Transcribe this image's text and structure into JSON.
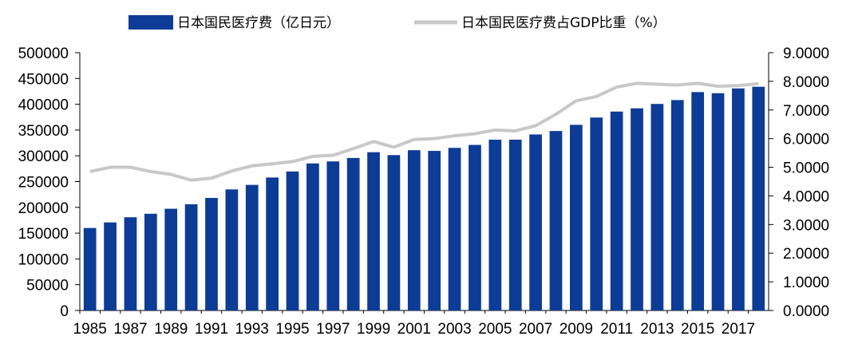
{
  "chart_data": {
    "type": "bar",
    "title": "",
    "xlabel": "",
    "ylabel": "",
    "ylabel_right": "",
    "grid": false,
    "legend_position": "top",
    "ylim": [
      0,
      500000
    ],
    "y2lim": [
      0,
      9
    ],
    "y_ticks": [
      "0",
      "50000",
      "100000",
      "150000",
      "200000",
      "250000",
      "300000",
      "350000",
      "400000",
      "450000",
      "500000"
    ],
    "y2_ticks": [
      "0.0000",
      "1.0000",
      "2.0000",
      "3.0000",
      "4.0000",
      "5.0000",
      "6.0000",
      "7.0000",
      "8.0000",
      "9.0000"
    ],
    "x_tick_labels": [
      "1985",
      "1987",
      "1989",
      "1991",
      "1993",
      "1995",
      "1997",
      "1999",
      "2001",
      "2003",
      "2005",
      "2007",
      "2009",
      "2011",
      "2013",
      "2015",
      "2017"
    ],
    "categories": [
      "1985",
      "1986",
      "1987",
      "1988",
      "1989",
      "1990",
      "1991",
      "1992",
      "1993",
      "1994",
      "1995",
      "1996",
      "1997",
      "1998",
      "1999",
      "2000",
      "2001",
      "2002",
      "2003",
      "2004",
      "2005",
      "2006",
      "2007",
      "2008",
      "2009",
      "2010",
      "2011",
      "2012",
      "2013",
      "2014",
      "2015",
      "2016",
      "2017",
      "2018"
    ],
    "series": [
      {
        "name": "日本国民医疗费（亿日元）",
        "type": "bar",
        "axis": "left",
        "color": "#0d3c96",
        "values": [
          160000,
          170800,
          180800,
          187600,
          197300,
          206100,
          218300,
          234800,
          243600,
          257900,
          269600,
          285200,
          289100,
          295800,
          307000,
          301400,
          310900,
          309500,
          315400,
          321100,
          331300,
          331300,
          341400,
          348100,
          360100,
          374200,
          385800,
          392100,
          400600,
          408100,
          423600,
          421400,
          430700,
          433900
        ]
      },
      {
        "name": "日本国民医疗费占GDP比重（%）",
        "type": "line",
        "axis": "right",
        "color": "#c8c8c8",
        "values": [
          4.85,
          5.0,
          5.0,
          4.85,
          4.75,
          4.55,
          4.62,
          4.87,
          5.05,
          5.12,
          5.2,
          5.38,
          5.42,
          5.65,
          5.9,
          5.7,
          5.97,
          6.0,
          6.1,
          6.17,
          6.3,
          6.27,
          6.45,
          6.85,
          7.32,
          7.47,
          7.8,
          7.93,
          7.9,
          7.87,
          7.93,
          7.83,
          7.85,
          7.92
        ]
      }
    ]
  }
}
